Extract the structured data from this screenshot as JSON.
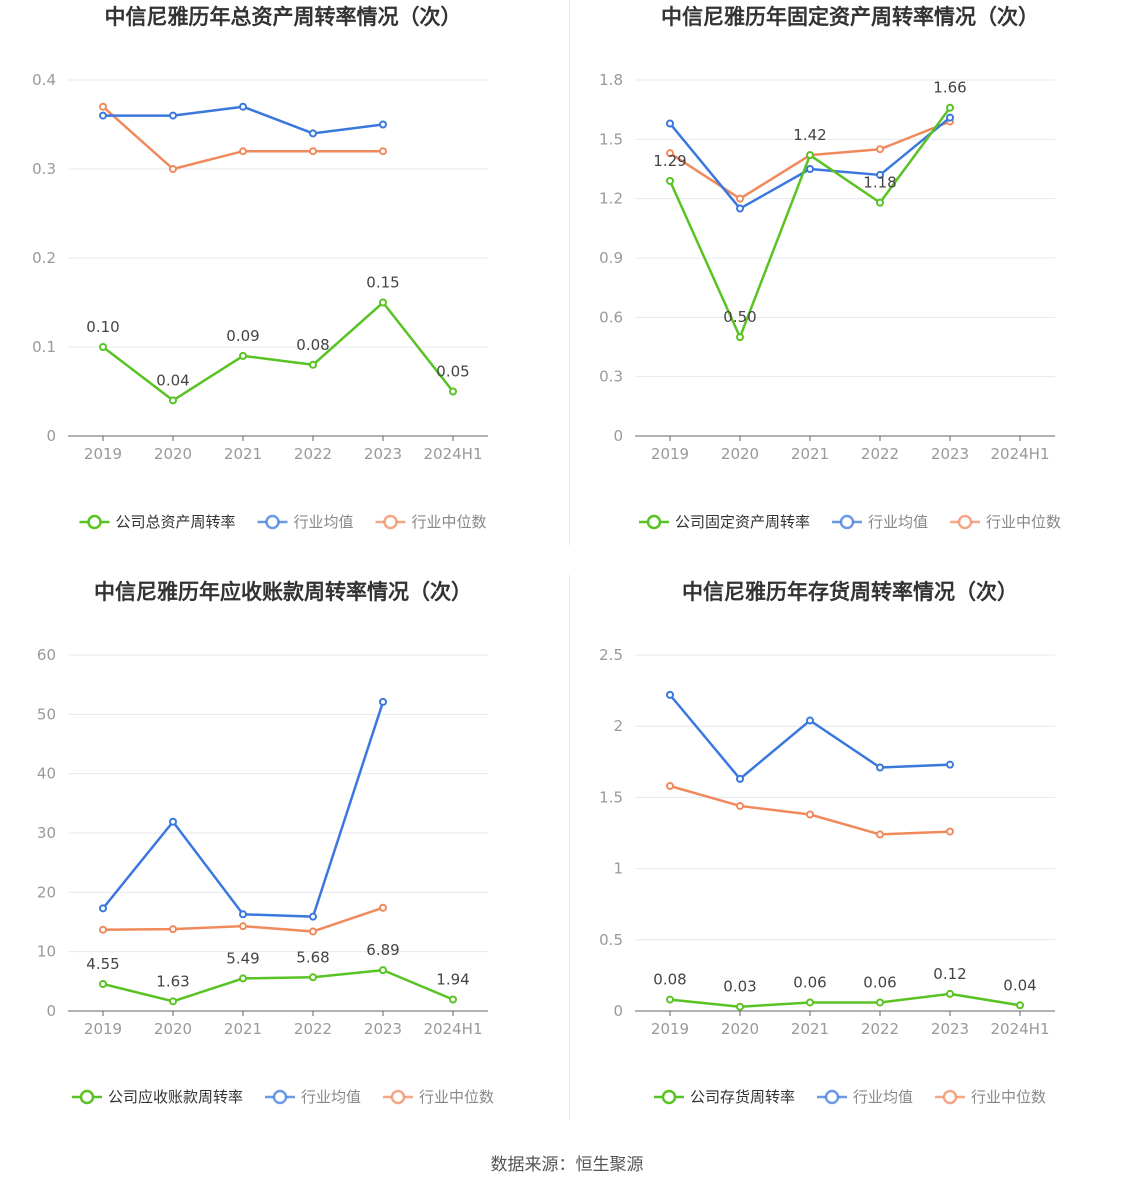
{
  "colors": {
    "company": "#58c322",
    "avg": "#3a78de",
    "median": "#f08a5d",
    "grid": "#e4e8f0",
    "axis": "#666666"
  },
  "legend_labels": {
    "avg": "行业均值",
    "median": "行业中位数"
  },
  "source": "数据来源：恒生聚源",
  "chart_data": [
    {
      "type": "line",
      "title": "中信尼雅历年总资产周转率情况（次）",
      "categories": [
        "2019",
        "2020",
        "2021",
        "2022",
        "2023",
        "2024H1"
      ],
      "ylim": [
        0,
        0.4
      ],
      "yticks": [
        "0",
        "0.1",
        "0.2",
        "0.3",
        "0.4"
      ],
      "ytick_values": [
        0,
        0.1,
        0.2,
        0.3,
        0.4
      ],
      "grid": true,
      "legend_position": "bottom",
      "series": [
        {
          "name": "公司总资产周转率",
          "key": "company",
          "values": [
            0.1,
            0.04,
            0.09,
            0.08,
            0.15,
            0.05
          ],
          "labels": [
            "0.10",
            "0.04",
            "0.09",
            "0.08",
            "0.15",
            "0.05"
          ]
        },
        {
          "name": "行业均值",
          "key": "avg",
          "values": [
            0.36,
            0.36,
            0.37,
            0.34,
            0.35,
            null
          ]
        },
        {
          "name": "行业中位数",
          "key": "median",
          "values": [
            0.37,
            0.3,
            0.32,
            0.32,
            0.32,
            null
          ]
        }
      ]
    },
    {
      "type": "line",
      "title": "中信尼雅历年固定资产周转率情况（次）",
      "categories": [
        "2019",
        "2020",
        "2021",
        "2022",
        "2023",
        "2024H1"
      ],
      "ylim": [
        0,
        1.8
      ],
      "yticks": [
        "0",
        "0.3",
        "0.6",
        "0.9",
        "1.2",
        "1.5",
        "1.8"
      ],
      "ytick_values": [
        0,
        0.3,
        0.6,
        0.9,
        1.2,
        1.5,
        1.8
      ],
      "grid": true,
      "legend_position": "bottom",
      "series": [
        {
          "name": "公司固定资产周转率",
          "key": "company",
          "values": [
            1.29,
            0.5,
            1.42,
            1.18,
            1.66,
            null
          ],
          "labels": [
            "1.29",
            "0.50",
            "1.42",
            "1.18",
            "1.66",
            ""
          ]
        },
        {
          "name": "行业均值",
          "key": "avg",
          "values": [
            1.58,
            1.15,
            1.35,
            1.32,
            1.61,
            null
          ]
        },
        {
          "name": "行业中位数",
          "key": "median",
          "values": [
            1.43,
            1.2,
            1.42,
            1.45,
            1.59,
            null
          ]
        }
      ]
    },
    {
      "type": "line",
      "title": "中信尼雅历年应收账款周转率情况（次）",
      "categories": [
        "2019",
        "2020",
        "2021",
        "2022",
        "2023",
        "2024H1"
      ],
      "ylim": [
        0,
        60
      ],
      "yticks": [
        "0",
        "10",
        "20",
        "30",
        "40",
        "50",
        "60"
      ],
      "ytick_values": [
        0,
        10,
        20,
        30,
        40,
        50,
        60
      ],
      "grid": true,
      "legend_position": "bottom",
      "series": [
        {
          "name": "公司应收账款周转率",
          "key": "company",
          "values": [
            4.55,
            1.63,
            5.49,
            5.68,
            6.89,
            1.94
          ],
          "labels": [
            "4.55",
            "1.63",
            "5.49",
            "5.68",
            "6.89",
            "1.94"
          ]
        },
        {
          "name": "行业均值",
          "key": "avg",
          "values": [
            17.3,
            31.9,
            16.3,
            15.9,
            52.1,
            null
          ]
        },
        {
          "name": "行业中位数",
          "key": "median",
          "values": [
            13.7,
            13.8,
            14.3,
            13.4,
            17.4,
            null
          ]
        }
      ]
    },
    {
      "type": "line",
      "title": "中信尼雅历年存货周转率情况（次）",
      "categories": [
        "2019",
        "2020",
        "2021",
        "2022",
        "2023",
        "2024H1"
      ],
      "ylim": [
        0,
        2.5
      ],
      "yticks": [
        "0",
        "0.5",
        "1",
        "1.5",
        "2",
        "2.5"
      ],
      "ytick_values": [
        0,
        0.5,
        1,
        1.5,
        2,
        2.5
      ],
      "grid": true,
      "legend_position": "bottom",
      "series": [
        {
          "name": "公司存货周转率",
          "key": "company",
          "values": [
            0.08,
            0.03,
            0.06,
            0.06,
            0.12,
            0.04
          ],
          "labels": [
            "0.08",
            "0.03",
            "0.06",
            "0.06",
            "0.12",
            "0.04"
          ]
        },
        {
          "name": "行业均值",
          "key": "avg",
          "values": [
            2.22,
            1.63,
            2.04,
            1.71,
            1.73,
            null
          ]
        },
        {
          "name": "行业中位数",
          "key": "median",
          "values": [
            1.58,
            1.44,
            1.38,
            1.24,
            1.26,
            null
          ]
        }
      ]
    }
  ]
}
